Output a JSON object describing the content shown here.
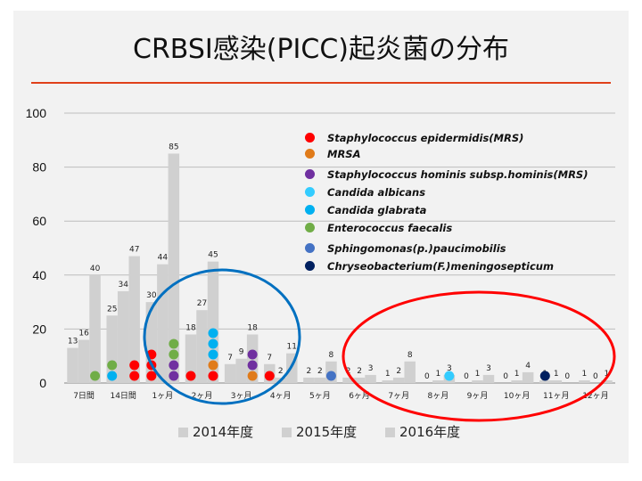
{
  "chart_data": {
    "type": "bar",
    "title": "CRBSI感染(PICC)起炎菌の分布",
    "ylim": [
      0,
      100
    ],
    "yticks": [
      0,
      20,
      40,
      60,
      80,
      100
    ],
    "categories": [
      "7日間",
      "14日間",
      "1ヶ月",
      "2ヶ月",
      "3ヶ月",
      "4ヶ月",
      "5ヶ月",
      "6ヶ月",
      "7ヶ月",
      "8ヶ月",
      "9ヶ月",
      "10ヶ月",
      "11ヶ月",
      "12ヶ月"
    ],
    "series": [
      {
        "name": "2014年度",
        "values": [
          13,
          25,
          30,
          18,
          7,
          7,
          2,
          2,
          1,
          0,
          0,
          0,
          1,
          1
        ]
      },
      {
        "name": "2015年度",
        "values": [
          16,
          34,
          44,
          27,
          9,
          2,
          2,
          2,
          2,
          1,
          1,
          1,
          1,
          0
        ]
      },
      {
        "name": "2016年度",
        "values": [
          40,
          47,
          85,
          45,
          18,
          11,
          8,
          3,
          8,
          3,
          3,
          4,
          0,
          1
        ]
      }
    ],
    "bar_color": "#d0d0d0",
    "organisms": [
      {
        "name": "Staphylococcus epidermidis(MRS)",
        "color": "#ff0000"
      },
      {
        "name": "MRSA",
        "color": "#e07b1a"
      },
      {
        "name": "Staphylococcus hominis subsp.hominis(MRS)",
        "color": "#7030a0"
      },
      {
        "name": "Candida albicans",
        "color": "#33ccff"
      },
      {
        "name": "Candida glabrata",
        "color": "#00b0f0"
      },
      {
        "name": "Enterococcus faecalis",
        "color": "#70ad47"
      },
      {
        "name": "Sphingomonas(p.)paucimobilis",
        "color": "#4472c4"
      },
      {
        "name": "Chryseobacterium(F.)meningosepticum",
        "color": "#002060"
      }
    ],
    "isolates": [
      {
        "cat": 0,
        "series": 2,
        "org": 5,
        "level": 0
      },
      {
        "cat": 1,
        "series": 0,
        "org": 4,
        "level": 0
      },
      {
        "cat": 1,
        "series": 0,
        "org": 5,
        "level": 1
      },
      {
        "cat": 1,
        "series": 2,
        "org": 0,
        "level": 0
      },
      {
        "cat": 1,
        "series": 2,
        "org": 0,
        "level": 1
      },
      {
        "cat": 2,
        "series": 0,
        "org": 0,
        "level": 0
      },
      {
        "cat": 2,
        "series": 0,
        "org": 0,
        "level": 1
      },
      {
        "cat": 2,
        "series": 0,
        "org": 0,
        "level": 2
      },
      {
        "cat": 2,
        "series": 2,
        "org": 2,
        "level": 0
      },
      {
        "cat": 2,
        "series": 2,
        "org": 2,
        "level": 1
      },
      {
        "cat": 2,
        "series": 2,
        "org": 5,
        "level": 2
      },
      {
        "cat": 2,
        "series": 2,
        "org": 5,
        "level": 3
      },
      {
        "cat": 3,
        "series": 0,
        "org": 0,
        "level": 0
      },
      {
        "cat": 3,
        "series": 2,
        "org": 0,
        "level": 0
      },
      {
        "cat": 3,
        "series": 2,
        "org": 1,
        "level": 1
      },
      {
        "cat": 3,
        "series": 2,
        "org": 4,
        "level": 2
      },
      {
        "cat": 3,
        "series": 2,
        "org": 4,
        "level": 3
      },
      {
        "cat": 3,
        "series": 2,
        "org": 4,
        "level": 4
      },
      {
        "cat": 4,
        "series": 2,
        "org": 1,
        "level": 0
      },
      {
        "cat": 4,
        "series": 2,
        "org": 2,
        "level": 1
      },
      {
        "cat": 4,
        "series": 2,
        "org": 2,
        "level": 2
      },
      {
        "cat": 5,
        "series": 0,
        "org": 0,
        "level": 0
      },
      {
        "cat": 6,
        "series": 2,
        "org": 6,
        "level": 0
      },
      {
        "cat": 9,
        "series": 2,
        "org": 3,
        "level": 0
      },
      {
        "cat": 12,
        "series": 0,
        "org": 7,
        "level": 0
      }
    ],
    "highlights": [
      {
        "label": "blue-circle",
        "color": "#0070c0"
      },
      {
        "label": "red-circle",
        "color": "#ff0000"
      }
    ]
  }
}
